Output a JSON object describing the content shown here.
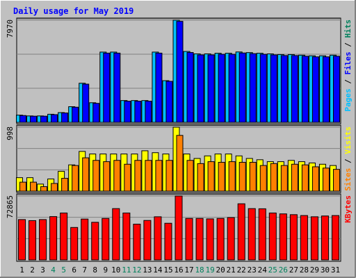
{
  "title": "Daily usage for May 2019",
  "colors": {
    "background": "#c0c0c0",
    "panel": "#c0c0c0",
    "title": "#0000ff",
    "hits": "#00805c",
    "files": "#0000ff",
    "pages": "#00c0ff",
    "visits": "#ffff00",
    "sites": "#ff8000",
    "kbytes": "#ff0000",
    "weekend_day": "#00805c",
    "weekday": "#000000"
  },
  "chart_data": [
    {
      "type": "bar",
      "panel": "hits-files-pages",
      "ylabel_top": "7970",
      "legend": [
        {
          "label": "Pages",
          "color": "#00c0ff"
        },
        {
          "label": " / ",
          "color": "#000000"
        },
        {
          "label": "Files",
          "color": "#0000ff"
        },
        {
          "label": " / ",
          "color": "#000000"
        },
        {
          "label": "Hits",
          "color": "#00805c"
        }
      ],
      "ylim": [
        0,
        7970
      ],
      "categories": [
        "1",
        "2",
        "3",
        "4",
        "5",
        "6",
        "7",
        "8",
        "9",
        "10",
        "11",
        "12",
        "13",
        "14",
        "15",
        "16",
        "17",
        "18",
        "19",
        "20",
        "21",
        "22",
        "23",
        "24",
        "25",
        "26",
        "27",
        "28",
        "29",
        "30",
        "31"
      ],
      "series": [
        {
          "name": "Hits",
          "values": [
            560,
            500,
            500,
            630,
            760,
            1220,
            3050,
            1530,
            5480,
            5480,
            1700,
            1700,
            1700,
            5480,
            3250,
            7970,
            5530,
            5340,
            5340,
            5390,
            5390,
            5490,
            5440,
            5390,
            5340,
            5290,
            5290,
            5240,
            5190,
            5190,
            5240
          ]
        },
        {
          "name": "Files",
          "values": [
            530,
            480,
            480,
            600,
            730,
            1180,
            2980,
            1480,
            5400,
            5400,
            1650,
            1650,
            1650,
            5400,
            3200,
            7880,
            5450,
            5260,
            5260,
            5310,
            5310,
            5410,
            5360,
            5310,
            5260,
            5210,
            5210,
            5160,
            5110,
            5110,
            5160
          ]
        }
      ]
    },
    {
      "type": "bar",
      "panel": "visits-sites",
      "ylabel_top": "998",
      "legend": [
        {
          "label": "Sites",
          "color": "#ff8000"
        },
        {
          "label": " / ",
          "color": "#000000"
        },
        {
          "label": "Visits",
          "color": "#ffff00"
        }
      ],
      "ylim": [
        0,
        998
      ],
      "categories": [
        "1",
        "2",
        "3",
        "4",
        "5",
        "6",
        "7",
        "8",
        "9",
        "10",
        "11",
        "12",
        "13",
        "14",
        "15",
        "16",
        "17",
        "18",
        "19",
        "20",
        "21",
        "22",
        "23",
        "24",
        "25",
        "26",
        "27",
        "28",
        "29",
        "30",
        "31"
      ],
      "series": [
        {
          "name": "Visits",
          "values": [
            210,
            210,
            110,
            190,
            310,
            410,
            620,
            580,
            580,
            580,
            580,
            580,
            630,
            600,
            580,
            998,
            580,
            510,
            550,
            580,
            580,
            550,
            510,
            490,
            460,
            460,
            480,
            460,
            440,
            420,
            400
          ]
        },
        {
          "name": "Sites",
          "values": [
            140,
            140,
            70,
            120,
            200,
            400,
            520,
            480,
            460,
            480,
            420,
            480,
            480,
            480,
            480,
            870,
            480,
            430,
            460,
            450,
            460,
            450,
            450,
            400,
            430,
            400,
            420,
            410,
            380,
            360,
            340
          ]
        }
      ]
    },
    {
      "type": "bar",
      "panel": "kbytes",
      "ylabel_top": "72865",
      "legend": [
        {
          "label": "KBytes",
          "color": "#ff0000"
        }
      ],
      "ylim": [
        0,
        72865
      ],
      "categories": [
        "1",
        "2",
        "3",
        "4",
        "5",
        "6",
        "7",
        "8",
        "9",
        "10",
        "11",
        "12",
        "13",
        "14",
        "15",
        "16",
        "17",
        "18",
        "19",
        "20",
        "21",
        "22",
        "23",
        "24",
        "25",
        "26",
        "27",
        "28",
        "29",
        "30",
        "31"
      ],
      "series": [
        {
          "name": "KBytes",
          "values": [
            46000,
            44800,
            46000,
            49400,
            53500,
            37000,
            46600,
            42900,
            47300,
            58500,
            53500,
            40800,
            45000,
            49200,
            41800,
            72865,
            47300,
            47300,
            46800,
            47300,
            48300,
            64000,
            58500,
            58300,
            53500,
            52500,
            51600,
            50600,
            49200,
            50100,
            50600
          ]
        }
      ]
    }
  ],
  "day_labels": [
    {
      "text": "1",
      "weekend": false
    },
    {
      "text": "2",
      "weekend": false
    },
    {
      "text": "3",
      "weekend": false
    },
    {
      "text": "4",
      "weekend": true
    },
    {
      "text": "5",
      "weekend": true
    },
    {
      "text": "6",
      "weekend": false
    },
    {
      "text": "7",
      "weekend": false
    },
    {
      "text": "8",
      "weekend": false
    },
    {
      "text": "9",
      "weekend": false
    },
    {
      "text": "10",
      "weekend": false
    },
    {
      "text": "11",
      "weekend": true
    },
    {
      "text": "12",
      "weekend": true
    },
    {
      "text": "13",
      "weekend": false
    },
    {
      "text": "14",
      "weekend": false
    },
    {
      "text": "15",
      "weekend": false
    },
    {
      "text": "16",
      "weekend": false
    },
    {
      "text": "17",
      "weekend": false
    },
    {
      "text": "18",
      "weekend": true
    },
    {
      "text": "19",
      "weekend": true
    },
    {
      "text": "20",
      "weekend": false
    },
    {
      "text": "21",
      "weekend": false
    },
    {
      "text": "22",
      "weekend": false
    },
    {
      "text": "23",
      "weekend": false
    },
    {
      "text": "24",
      "weekend": false
    },
    {
      "text": "25",
      "weekend": true
    },
    {
      "text": "26",
      "weekend": true
    },
    {
      "text": "27",
      "weekend": false
    },
    {
      "text": "28",
      "weekend": false
    },
    {
      "text": "29",
      "weekend": false
    },
    {
      "text": "30",
      "weekend": false
    },
    {
      "text": "31",
      "weekend": false
    }
  ]
}
